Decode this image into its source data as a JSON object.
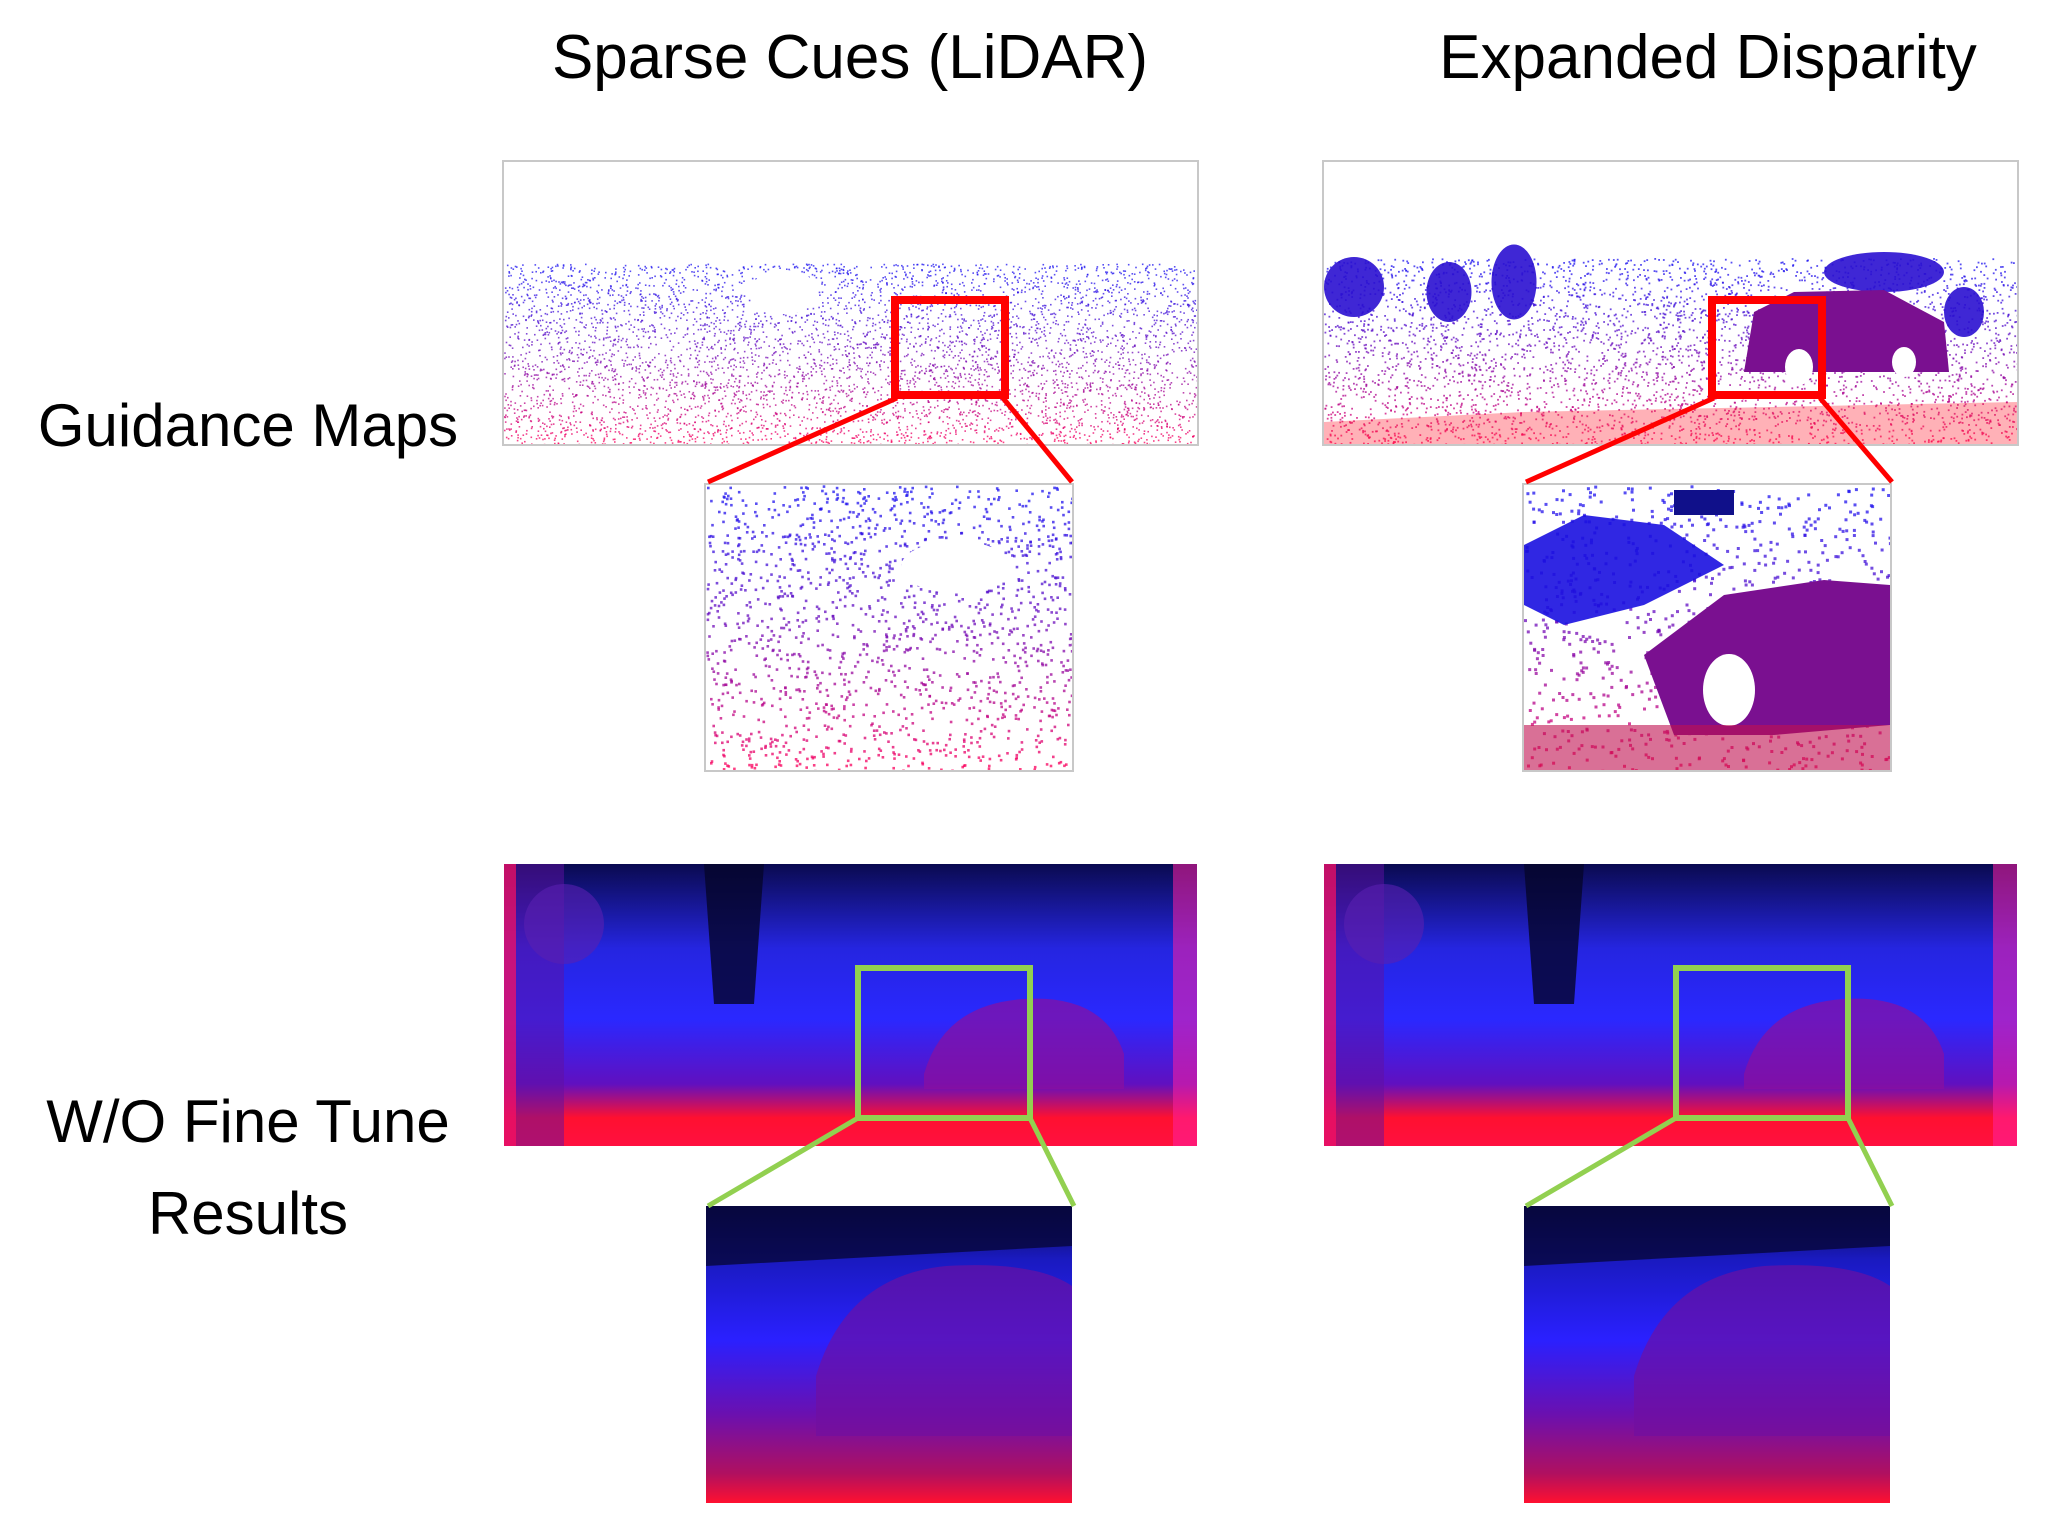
{
  "columns": {
    "left_title": "Sparse Cues (LiDAR)",
    "right_title": "Expanded Disparity"
  },
  "rows": {
    "guidance_label": "Guidance Maps",
    "results_label_line1": "W/O Fine Tune",
    "results_label_line2": "Results"
  },
  "colors": {
    "guidance_box": "#ff0000",
    "results_box": "#92d050",
    "near": "#ff1030",
    "far": "#0a0a60",
    "mid": "#2020ff"
  }
}
